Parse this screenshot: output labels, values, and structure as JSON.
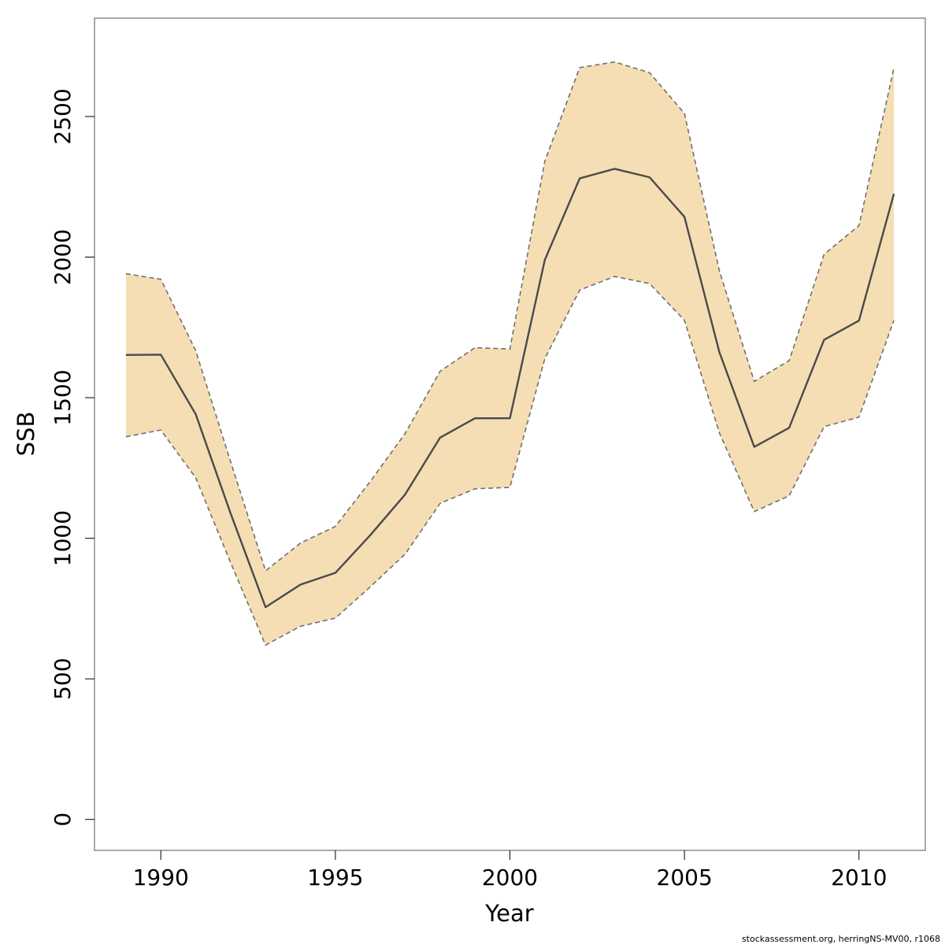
{
  "chart_data": {
    "type": "line",
    "xlabel": "Year",
    "ylabel": "SSB",
    "xlim": [
      1988.1,
      2011.9
    ],
    "ylim": [
      -110,
      2850
    ],
    "x_ticks": [
      1990,
      1995,
      2000,
      2005,
      2010
    ],
    "y_ticks": [
      0,
      500,
      1000,
      1500,
      2000,
      2500
    ],
    "x": [
      1989,
      1990,
      1991,
      1992,
      1993,
      1994,
      1995,
      1996,
      1997,
      1998,
      1999,
      2000,
      2001,
      2002,
      2003,
      2004,
      2005,
      2006,
      2007,
      2008,
      2009,
      2010,
      2011
    ],
    "series": [
      {
        "role": "estimate",
        "values": [
          1652,
          1653,
          1441,
          1088,
          755,
          835,
          877,
          1011,
          1156,
          1358,
          1427,
          1427,
          1990,
          2280,
          2314,
          2284,
          2143,
          1662,
          1325,
          1393,
          1706,
          1774,
          2225
        ]
      },
      {
        "role": "upper",
        "values": [
          1941,
          1921,
          1667,
          1272,
          884,
          983,
          1042,
          1202,
          1373,
          1594,
          1678,
          1673,
          2341,
          2674,
          2694,
          2656,
          2511,
          1951,
          1558,
          1632,
          2010,
          2112,
          2672
        ]
      },
      {
        "role": "lower",
        "values": [
          1361,
          1385,
          1215,
          913,
          620,
          687,
          716,
          827,
          944,
          1124,
          1176,
          1181,
          1639,
          1883,
          1931,
          1906,
          1775,
          1375,
          1095,
          1151,
          1397,
          1431,
          1775
        ]
      }
    ],
    "colors": {
      "band": "#f5deb3",
      "band_edge": "#707070",
      "line": "#4a4a4a",
      "frame": "#555555"
    },
    "grid": false,
    "legend": "none"
  },
  "footer": {
    "credit": "stockassessment.org, herringNS-MV00, r1068"
  }
}
